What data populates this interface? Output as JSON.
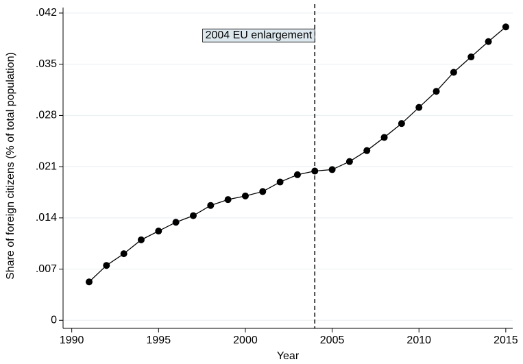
{
  "chart_data": {
    "type": "line",
    "x_label": "Year",
    "y_label": "Share of foreign citizens (% of total population)",
    "annotation": "2004 EU enlargement",
    "vline": 2004,
    "x": [
      1991,
      1992,
      1993,
      1994,
      1995,
      1996,
      1997,
      1998,
      1999,
      2000,
      2001,
      2002,
      2003,
      2004,
      2005,
      2006,
      2007,
      2008,
      2009,
      2010,
      2011,
      2012,
      2013,
      2014,
      2015
    ],
    "series": [
      {
        "color": "#000000",
        "values": [
          0.00525,
          0.0075,
          0.0091,
          0.011,
          0.0122,
          0.0134,
          0.0143,
          0.0157,
          0.0165,
          0.017,
          0.0176,
          0.0189,
          0.0199,
          0.0204,
          0.0206,
          0.0217,
          0.0232,
          0.025,
          0.0269,
          0.0291,
          0.0313,
          0.0339,
          0.036,
          0.0381,
          0.0401
        ]
      }
    ],
    "xlim": [
      1989.5,
      2015.4
    ],
    "ylim": [
      -0.0011,
      0.0435
    ],
    "xticks": [
      1990,
      1995,
      2000,
      2005,
      2010,
      2015
    ],
    "yticks": [
      0,
      {
        "value": 0.007,
        "label": ".007"
      },
      {
        "value": 0.014,
        "label": ".014"
      },
      {
        "value": 0.021,
        "label": ".021"
      },
      {
        "value": 0.028,
        "label": ".028"
      },
      {
        "value": 0.035,
        "label": ".035"
      },
      {
        "value": 0.042,
        "label": ".042"
      }
    ],
    "grid": true
  }
}
